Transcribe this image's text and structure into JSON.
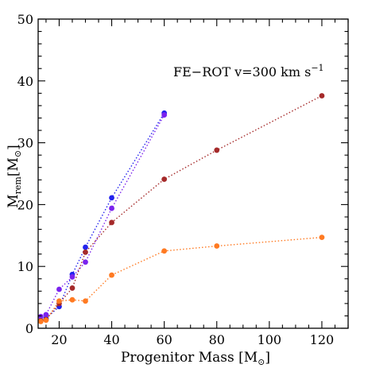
{
  "chart_data": {
    "type": "scatter",
    "xlabel": "Progenitor Mass [M",
    "xlabel_sub": "⊙",
    "xlabel_tail": "]",
    "ylabel": "M",
    "ylabel_sub": "rem",
    "ylabel_mid": "[M",
    "ylabel_sub2": "⊙",
    "ylabel_tail": "]",
    "annotation": "FE−ROT v=300 km s",
    "annotation_sup": "−1",
    "xlim": [
      12,
      130
    ],
    "ylim": [
      0,
      50
    ],
    "x_ticks": [
      20,
      40,
      60,
      80,
      100,
      120
    ],
    "y_ticks": [
      0,
      10,
      20,
      30,
      40,
      50
    ],
    "x_tick_labels": [
      "20",
      "40",
      "60",
      "80",
      "100",
      "120"
    ],
    "y_tick_labels": [
      "0",
      "10",
      "20",
      "30",
      "40",
      "50"
    ],
    "grid": false,
    "line_style": "dotted",
    "series": [
      {
        "color": "#2222ee",
        "x": [
          13,
          15,
          20,
          25,
          30,
          40,
          60
        ],
        "y": [
          1.2,
          1.6,
          3.5,
          8.7,
          13.1,
          21.1,
          34.8
        ]
      },
      {
        "color": "#7a22ee",
        "x": [
          13,
          15,
          20,
          25,
          30,
          40,
          60
        ],
        "y": [
          1.9,
          2.2,
          6.3,
          8.3,
          10.7,
          19.4,
          34.5
        ]
      },
      {
        "color": "#a52a2a",
        "x": [
          13,
          15,
          20,
          25,
          30,
          40,
          60,
          80,
          120
        ],
        "y": [
          1.2,
          1.4,
          4.0,
          6.5,
          12.3,
          17.1,
          24.1,
          28.8,
          37.6
        ]
      },
      {
        "color": "#ff7a22",
        "x": [
          13,
          15,
          20,
          25,
          30,
          40,
          60,
          80,
          120
        ],
        "y": [
          1.1,
          1.3,
          4.4,
          4.6,
          4.4,
          8.6,
          12.5,
          13.3,
          14.7
        ]
      }
    ]
  }
}
